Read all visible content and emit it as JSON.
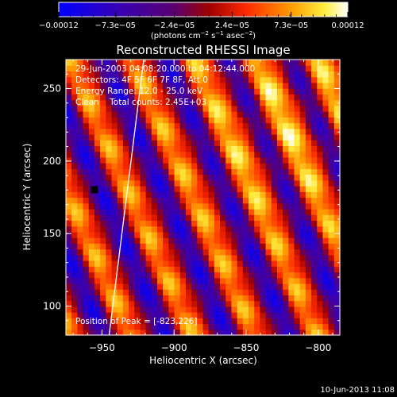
{
  "chart_data": {
    "type": "heatmap",
    "title": "Reconstructed RHESSI Image",
    "xlabel": "Heliocentric X (arcsec)",
    "ylabel": "Heliocentric Y (arcsec)",
    "xlim": [
      -975,
      -785
    ],
    "ylim": [
      80,
      270
    ],
    "x_ticks": [
      {
        "value": -950,
        "label": "−950"
      },
      {
        "value": -900,
        "label": "−900"
      },
      {
        "value": -850,
        "label": "−850"
      },
      {
        "value": -800,
        "label": "−800"
      }
    ],
    "y_ticks": [
      {
        "value": 100,
        "label": "100"
      },
      {
        "value": 150,
        "label": "150"
      },
      {
        "value": 200,
        "label": "200"
      },
      {
        "value": 250,
        "label": "250"
      }
    ],
    "grid": false,
    "colormap": "blue-purple-red-yellow-white",
    "colorbar": {
      "range": [
        -0.00012,
        0.00012
      ],
      "tick_values": [
        -0.00012,
        -7.3e-05,
        -2.4e-05,
        2.4e-05,
        7.3e-05,
        0.00012
      ],
      "tick_labels": [
        "−0.00012",
        "−7.3e−05",
        "−2.4e−05",
        "2.4e−05",
        "7.3e−05",
        "0.00012"
      ],
      "unit_label_parts": [
        "(photons cm",
        "−2",
        " s",
        "−1",
        " asec",
        "−2",
        ")"
      ]
    },
    "annotations": [
      "29-Jun-2003 04:08:20.000 to 04:12:44.000",
      "Detectors: 4F 5F 6F 7F 8F, Att 0",
      "Energy Range: 12.0 - 25.0 keV",
      "Clean    Total counts: 2.45E+03"
    ],
    "peak": {
      "label": "Position of Peak = [-823,226]",
      "x": -823,
      "y": 226
    },
    "limb_line": [
      [
        -945,
        80
      ],
      [
        -921,
        270
      ]
    ],
    "black_marker": {
      "x": -955,
      "y": 180
    },
    "stripes": {
      "orientation": "diagonal",
      "period_arcsec": 43,
      "min": -0.00012,
      "max": 0.00012
    },
    "footer": "10-Jun-2013 11:08"
  }
}
